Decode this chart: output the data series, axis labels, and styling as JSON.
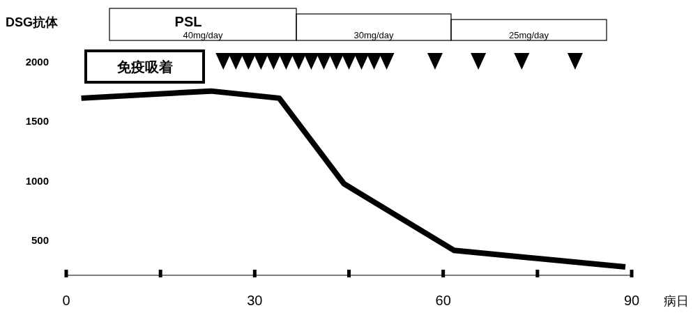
{
  "chart_data": {
    "type": "line",
    "ylabel": "DSG抗体",
    "xlabel": "病日",
    "title": "PSL",
    "x": [
      2.4,
      23,
      33.9,
      44.2,
      61.7,
      89
    ],
    "series": [
      {
        "color": "#000000",
        "values": [
          1690,
          1750,
          1690,
          970,
          410,
          270
        ]
      },
      {
        "type": "scatter",
        "marker": "triangle",
        "color": "#000000",
        "x": [
          25,
          27,
          29,
          31,
          33,
          35,
          37,
          39,
          41,
          43,
          45,
          47,
          49,
          51,
          58.7,
          65.6,
          72.5,
          81
        ],
        "values": [
          2000,
          2000,
          2000,
          2000,
          2000,
          2000,
          2000,
          2000,
          2000,
          2000,
          2000,
          2000,
          2000,
          2000,
          2000,
          2000,
          2000,
          2000
        ]
      }
    ],
    "xlim": [
      0,
      90
    ],
    "ylim": [
      200,
      2000
    ],
    "xticks": [
      0,
      {
        "value": 15,
        "label": null
      },
      30,
      {
        "value": 45,
        "label": null
      },
      60,
      {
        "value": 75,
        "label": null
      },
      90
    ],
    "yticks": [
      500,
      1000,
      1500,
      2000
    ],
    "annotations": [
      "免疫吸着",
      "40mg/day",
      "30mg/day",
      "25mg/day"
    ],
    "grid": false
  }
}
